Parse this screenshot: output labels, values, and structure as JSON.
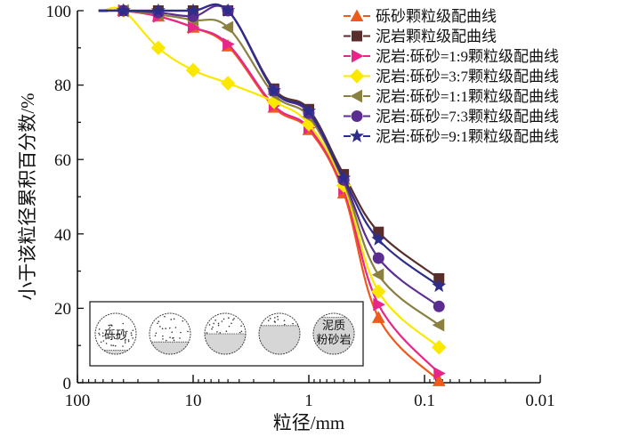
{
  "chart_data": {
    "type": "line",
    "title": "",
    "xlabel": "粒径/mm",
    "ylabel": "小于该粒径累积百分数/%",
    "x_scale": "log",
    "x_reversed": true,
    "xlim": [
      100,
      0.01
    ],
    "ylim": [
      0,
      100
    ],
    "x_ticks": [
      100,
      10,
      1,
      0.1,
      0.01
    ],
    "x_tick_labels": [
      "100",
      "10",
      "1",
      "0.1",
      "0.01"
    ],
    "y_ticks": [
      0,
      20,
      40,
      60,
      80,
      100
    ],
    "y_tick_labels": [
      "0",
      "20",
      "40",
      "60",
      "80",
      "100"
    ],
    "grid": false,
    "legend_position": "top-right",
    "x": [
      60,
      40,
      20,
      10,
      5,
      2,
      1,
      0.5,
      0.25,
      0.075
    ],
    "series": [
      {
        "name": "砾砂颗粒级配曲线",
        "color": "#ec5a1e",
        "marker": "triangle-up",
        "values": [
          100,
          100,
          98.5,
          95.5,
          90.5,
          74,
          68,
          51,
          17.5,
          0.5
        ]
      },
      {
        "name": "泥岩颗粒级配曲线",
        "color": "#5a2d2d",
        "marker": "square",
        "values": [
          100,
          100,
          100,
          100,
          100,
          79,
          73.5,
          56,
          40.5,
          28
        ]
      },
      {
        "name": "泥岩:砾砂=1:9颗粒级配曲线",
        "color": "#e8268a",
        "marker": "triangle-right",
        "values": [
          100,
          100,
          98.5,
          95.5,
          91,
          74.5,
          68.5,
          52,
          21,
          2.5
        ]
      },
      {
        "name": "泥岩:砾砂=3:7颗粒级配曲线",
        "color": "#fbe800",
        "marker": "diamond",
        "values": [
          100,
          100,
          90,
          84,
          80.5,
          75.5,
          69.5,
          53,
          24.5,
          9.5
        ]
      },
      {
        "name": "泥岩:砾砂=1:1颗粒级配曲线",
        "color": "#8a8040",
        "marker": "triangle-left",
        "values": [
          100,
          100,
          99,
          97.5,
          95.5,
          77.5,
          71.5,
          54,
          29,
          15.5
        ]
      },
      {
        "name": "泥岩:砾砂=7:3颗粒级配曲线",
        "color": "#5c2d91",
        "marker": "circle",
        "values": [
          100,
          100,
          99.5,
          98.5,
          100,
          78.5,
          72.5,
          54.5,
          33.5,
          20.5
        ]
      },
      {
        "name": "泥岩:砾砂=9:1颗粒级配曲线",
        "color": "#2d2d8a",
        "marker": "star",
        "values": [
          100,
          100,
          100,
          100,
          100,
          78.5,
          73,
          55,
          38.5,
          26
        ]
      }
    ],
    "inset": {
      "description": "sample schematic circles from gravelly sand to muddy siltstone",
      "labels": [
        "砾砂",
        "泥质粉砂岩"
      ],
      "label_first": "砾砂",
      "label_last_line1": "泥质",
      "label_last_line2": "粉砂岩",
      "mud_fractions": [
        0.1,
        0.3,
        0.5,
        0.7,
        0.9
      ]
    }
  }
}
